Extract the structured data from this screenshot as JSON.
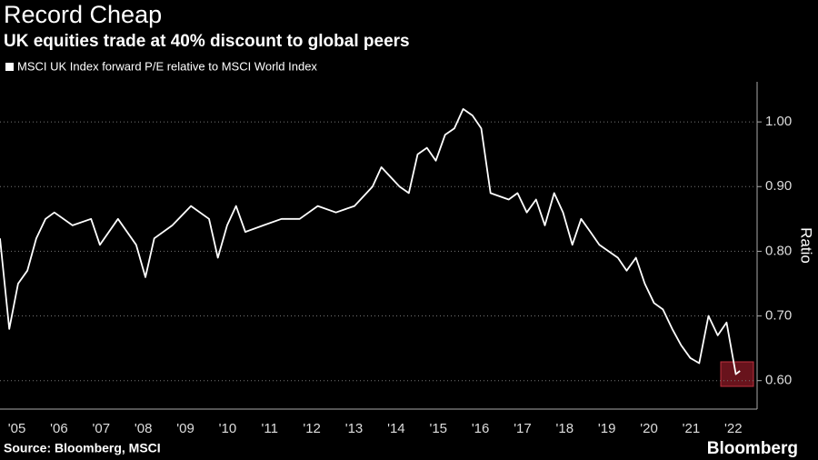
{
  "chart_data": {
    "type": "line",
    "title": "Record Cheap",
    "subtitle": "UK equities trade at 40% discount to global peers",
    "source": "Source: Bloomberg, MSCI",
    "brand": "Bloomberg",
    "y_label": "Ratio",
    "x": [
      2005.1,
      2005.32,
      2005.53,
      2005.75,
      2005.96,
      2006.18,
      2006.39,
      2006.82,
      2007.26,
      2007.47,
      2007.9,
      2008.33,
      2008.55,
      2008.76,
      2009.19,
      2009.63,
      2010.06,
      2010.27,
      2010.49,
      2010.7,
      2010.92,
      2011.35,
      2011.78,
      2012.21,
      2012.64,
      2013.07,
      2013.51,
      2013.94,
      2014.15,
      2014.58,
      2014.8,
      2015.01,
      2015.23,
      2015.44,
      2015.66,
      2015.88,
      2016.09,
      2016.31,
      2016.52,
      2016.74,
      2017.17,
      2017.38,
      2017.6,
      2017.82,
      2018.03,
      2018.25,
      2018.46,
      2018.68,
      2018.89,
      2019.11,
      2019.32,
      2019.76,
      2019.97,
      2020.19,
      2020.4,
      2020.62,
      2020.83,
      2021.05,
      2021.26,
      2021.48,
      2021.69,
      2021.91,
      2022.13,
      2022.34,
      2022.56,
      2022.66
    ],
    "series": [
      {
        "name": "MSCI UK Index forward P/E relative to MSCI World Index",
        "color": "#ffffff",
        "values": [
          0.82,
          0.68,
          0.75,
          0.77,
          0.82,
          0.85,
          0.86,
          0.84,
          0.85,
          0.81,
          0.85,
          0.81,
          0.76,
          0.82,
          0.84,
          0.87,
          0.85,
          0.79,
          0.84,
          0.87,
          0.83,
          0.84,
          0.85,
          0.85,
          0.87,
          0.86,
          0.87,
          0.9,
          0.93,
          0.9,
          0.89,
          0.95,
          0.96,
          0.94,
          0.98,
          0.99,
          1.02,
          1.01,
          0.99,
          0.89,
          0.88,
          0.89,
          0.86,
          0.88,
          0.84,
          0.89,
          0.86,
          0.81,
          0.85,
          0.83,
          0.81,
          0.79,
          0.77,
          0.79,
          0.75,
          0.72,
          0.71,
          0.68,
          0.655,
          0.635,
          0.627,
          0.7,
          0.67,
          0.69,
          0.61,
          0.615
        ]
      }
    ],
    "xlim": [
      2005.1,
      2023.0
    ],
    "xticks": [
      {
        "value": 2005.5,
        "label": "'05"
      },
      {
        "value": 2006.5,
        "label": "'06"
      },
      {
        "value": 2007.5,
        "label": "'07"
      },
      {
        "value": 2008.5,
        "label": "'08"
      },
      {
        "value": 2009.5,
        "label": "'09"
      },
      {
        "value": 2010.5,
        "label": "'10"
      },
      {
        "value": 2011.5,
        "label": "'11"
      },
      {
        "value": 2012.5,
        "label": "'12"
      },
      {
        "value": 2013.5,
        "label": "'13"
      },
      {
        "value": 2014.5,
        "label": "'14"
      },
      {
        "value": 2015.5,
        "label": "'15"
      },
      {
        "value": 2016.5,
        "label": "'16"
      },
      {
        "value": 2017.5,
        "label": "'17"
      },
      {
        "value": 2018.5,
        "label": "'18"
      },
      {
        "value": 2019.5,
        "label": "'19"
      },
      {
        "value": 2020.5,
        "label": "'20"
      },
      {
        "value": 2021.5,
        "label": "'21"
      },
      {
        "value": 2022.5,
        "label": "'22"
      }
    ],
    "ylim": [
      0.556,
      1.062
    ],
    "yticks": [
      {
        "value": 0.6,
        "label": "0.60"
      },
      {
        "value": 0.7,
        "label": "0.70"
      },
      {
        "value": 0.8,
        "label": "0.80"
      },
      {
        "value": 0.9,
        "label": "0.90"
      },
      {
        "value": 1.0,
        "label": "1.00"
      }
    ],
    "grid": true
  }
}
